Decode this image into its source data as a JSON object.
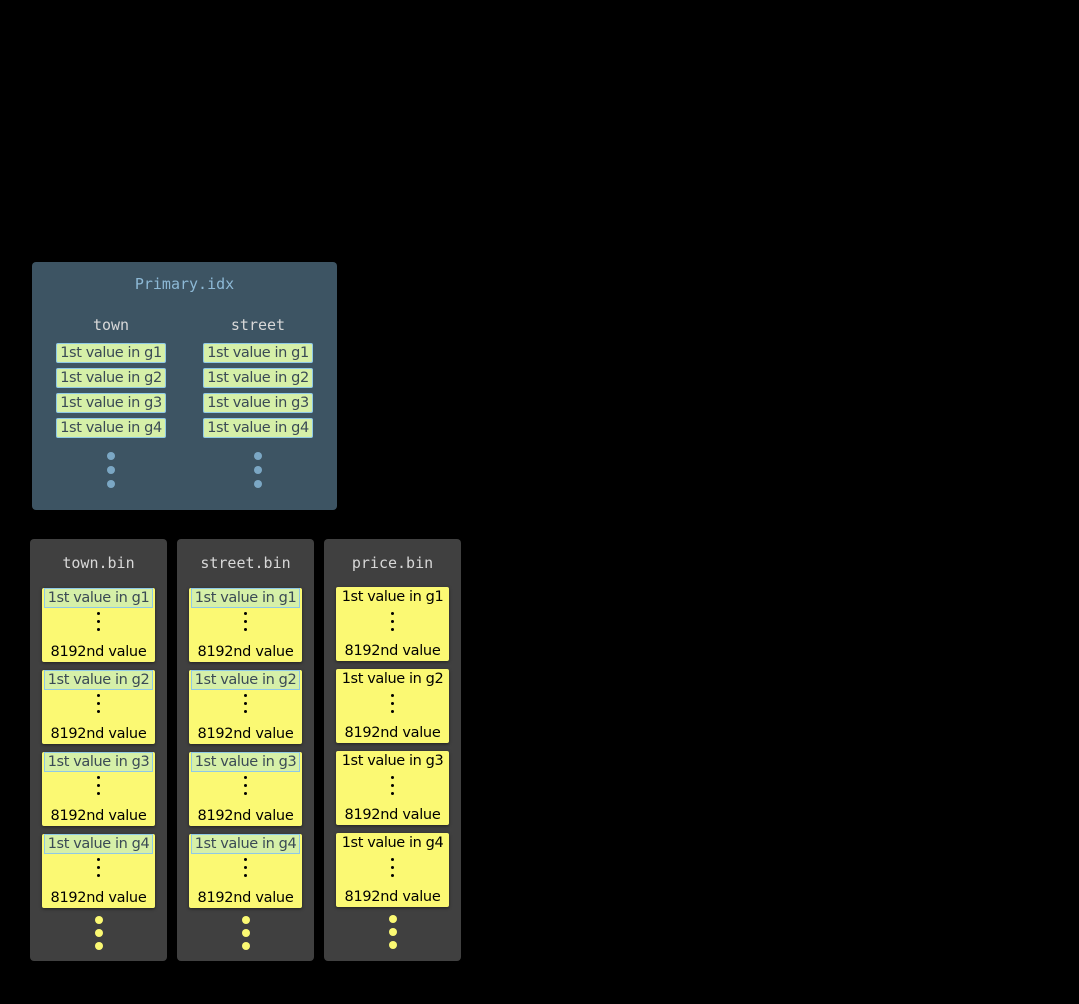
{
  "primary_index": {
    "title": "Primary.idx",
    "columns": [
      {
        "name": "town",
        "entries": [
          "1st value in g1",
          "1st value in g2",
          "1st value in g3",
          "1st value in g4"
        ]
      },
      {
        "name": "street",
        "entries": [
          "1st value in g1",
          "1st value in g2",
          "1st value in g3",
          "1st value in g4"
        ]
      }
    ],
    "dot_color": "#7ba7c4"
  },
  "bins": [
    {
      "title": "town.bin",
      "indexed": true,
      "granules": [
        {
          "first": "1st value in g1",
          "last": "8192nd value"
        },
        {
          "first": "1st value in g2",
          "last": "8192nd value"
        },
        {
          "first": "1st value in g3",
          "last": "8192nd value"
        },
        {
          "first": "1st value in g4",
          "last": "8192nd value"
        }
      ]
    },
    {
      "title": "street.bin",
      "indexed": true,
      "granules": [
        {
          "first": "1st value in g1",
          "last": "8192nd value"
        },
        {
          "first": "1st value in g2",
          "last": "8192nd value"
        },
        {
          "first": "1st value in g3",
          "last": "8192nd value"
        },
        {
          "first": "1st value in g4",
          "last": "8192nd value"
        }
      ]
    },
    {
      "title": "price.bin",
      "indexed": false,
      "granules": [
        {
          "first": "1st value in g1",
          "last": "8192nd value"
        },
        {
          "first": "1st value in g2",
          "last": "8192nd value"
        },
        {
          "first": "1st value in g3",
          "last": "8192nd value"
        },
        {
          "first": "1st value in g4",
          "last": "8192nd value"
        }
      ]
    }
  ],
  "colors": {
    "index_panel": "#3d5463",
    "bin_panel": "#404040",
    "granule": "#fbf973",
    "index_entry": "#d6f0a8",
    "granule_dots": "#fbf973"
  }
}
